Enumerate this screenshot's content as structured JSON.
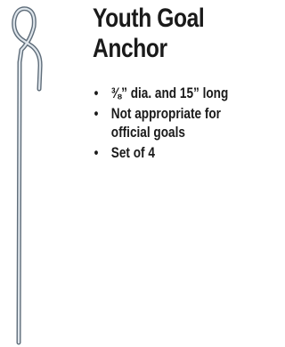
{
  "product": {
    "title": "Youth Goal Anchor",
    "features": [
      "⅜” dia. and 15” long",
      "Not appropriate for official goals",
      "Set of 4"
    ]
  }
}
